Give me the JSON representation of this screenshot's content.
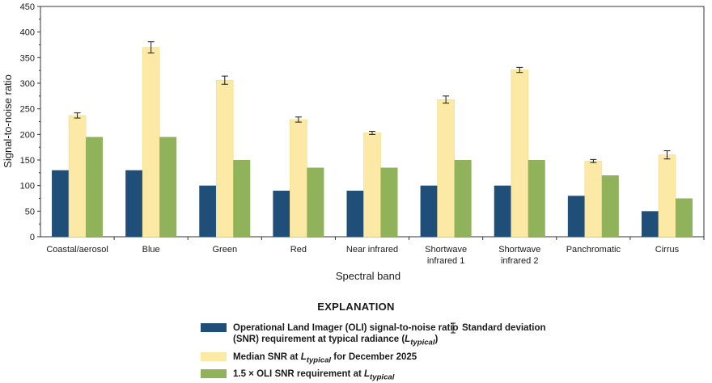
{
  "chart_data": {
    "type": "bar",
    "xlabel": "Spectral band",
    "ylabel": "Signal-to-noise ratio",
    "ylim": [
      0,
      450
    ],
    "yticks": [
      0,
      50,
      100,
      150,
      200,
      250,
      300,
      350,
      400,
      450
    ],
    "grid": false,
    "legend_position": "bottom",
    "categories": [
      "Coastal/aerosol",
      "Blue",
      "Green",
      "Red",
      "Near infrared",
      "Shortwave\ninfrared 1",
      "Shortwave\ninfrared 2",
      "Panchromatic",
      "Cirrus"
    ],
    "series": [
      {
        "key": "oli_req",
        "color": "#1f4e79",
        "values": [
          130,
          130,
          100,
          90,
          90,
          100,
          100,
          80,
          50
        ]
      },
      {
        "key": "median",
        "color": "#fbe9a5",
        "values": [
          237,
          370,
          306,
          229,
          203,
          268,
          326,
          148,
          160
        ],
        "error": [
          5,
          11,
          8,
          5,
          3,
          7,
          5,
          3,
          8
        ]
      },
      {
        "key": "oli_15",
        "color": "#8fb25a",
        "values": [
          195,
          195,
          150,
          135,
          135,
          150,
          150,
          120,
          75
        ]
      }
    ]
  },
  "legend": {
    "title": "EXPLANATION",
    "oli_req_label": "Operational Land Imager (OLI) signal-to-noise ratio\n(SNR) requirement at typical radiance (",
    "oli_req_label_end": ")",
    "median_label": "Median SNR at ",
    "median_label_end": " for December 2025",
    "oli_15_label": "1.5 × OLI SNR requirement at ",
    "ltyp_main": "L",
    "ltyp_sub": "typical",
    "sd_label": "Standard deviation",
    "sd_icon": "error-bar-icon"
  }
}
